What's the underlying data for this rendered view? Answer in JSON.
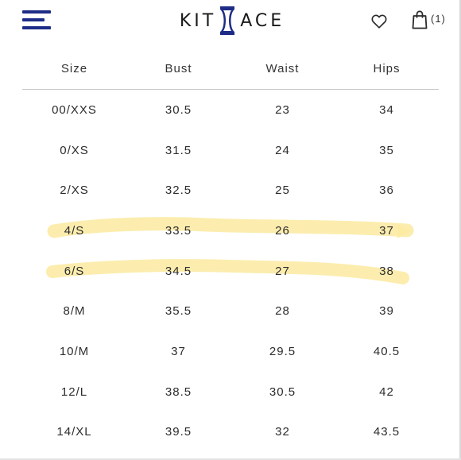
{
  "header": {
    "menu_icon": "hamburger-menu-icon",
    "logo_left": "KIT",
    "logo_right": "ACE",
    "wishlist_icon": "heart-icon",
    "cart_icon": "shopping-bag-icon",
    "cart_count": "(1)",
    "brand_color": "#1d2c86"
  },
  "size_chart": {
    "columns": [
      "Size",
      "Bust",
      "Waist",
      "Hips"
    ],
    "rows": [
      {
        "size": "00/XXS",
        "bust": "30.5",
        "waist": "23",
        "hips": "34"
      },
      {
        "size": "0/XS",
        "bust": "31.5",
        "waist": "24",
        "hips": "35"
      },
      {
        "size": "2/XS",
        "bust": "32.5",
        "waist": "25",
        "hips": "36"
      },
      {
        "size": "4/S",
        "bust": "33.5",
        "waist": "26",
        "hips": "37"
      },
      {
        "size": "6/S",
        "bust": "34.5",
        "waist": "27",
        "hips": "38"
      },
      {
        "size": "8/M",
        "bust": "35.5",
        "waist": "28",
        "hips": "39"
      },
      {
        "size": "10/M",
        "bust": "37",
        "waist": "29.5",
        "hips": "40.5"
      },
      {
        "size": "12/L",
        "bust": "38.5",
        "waist": "30.5",
        "hips": "42"
      },
      {
        "size": "14/XL",
        "bust": "39.5",
        "waist": "32",
        "hips": "43.5"
      }
    ],
    "highlighted_rows": [
      "4/S",
      "6/S"
    ],
    "highlight_color": "#fbeaa0"
  }
}
